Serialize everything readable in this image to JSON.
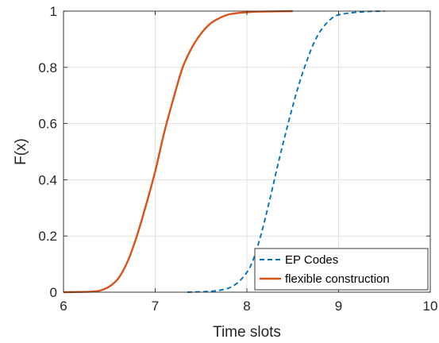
{
  "chart_data": {
    "type": "line",
    "title": "",
    "xlabel": "Time slots",
    "ylabel": "F(x)",
    "xlim": [
      6,
      10
    ],
    "ylim": [
      0,
      1
    ],
    "xticks": [
      6,
      7,
      8,
      9,
      10
    ],
    "yticks": [
      0,
      0.2,
      0.4,
      0.6,
      0.8,
      1
    ],
    "xtick_labels": [
      "6",
      "7",
      "8",
      "9",
      "10"
    ],
    "ytick_labels": [
      "0",
      "0.2",
      "0.4",
      "0.6",
      "0.8",
      "1"
    ],
    "grid": true,
    "legend_position": "bottom-right",
    "series": [
      {
        "name": "EP Codes",
        "color": "#0072bd",
        "style": "dashed",
        "x": [
          7.35,
          7.6,
          7.75,
          7.85,
          7.95,
          8.05,
          8.15,
          8.25,
          8.35,
          8.45,
          8.55,
          8.65,
          8.75,
          8.85,
          8.95,
          9.05,
          9.2,
          9.35,
          9.5
        ],
        "y": [
          0.0,
          0.003,
          0.01,
          0.022,
          0.05,
          0.1,
          0.2,
          0.33,
          0.47,
          0.6,
          0.72,
          0.82,
          0.9,
          0.95,
          0.98,
          0.99,
          0.996,
          0.999,
          1.0
        ]
      },
      {
        "name": "flexible construction",
        "color": "#d95319",
        "style": "solid",
        "x": [
          6.0,
          6.3,
          6.4,
          6.5,
          6.6,
          6.7,
          6.8,
          6.9,
          7.0,
          7.1,
          7.2,
          7.3,
          7.4,
          7.5,
          7.6,
          7.7,
          7.8,
          7.9,
          8.0,
          8.1,
          8.3,
          8.5
        ],
        "y": [
          0.0,
          0.002,
          0.006,
          0.02,
          0.05,
          0.11,
          0.2,
          0.31,
          0.43,
          0.57,
          0.69,
          0.8,
          0.87,
          0.92,
          0.955,
          0.975,
          0.988,
          0.993,
          0.996,
          0.998,
          0.999,
          1.0
        ]
      }
    ]
  }
}
